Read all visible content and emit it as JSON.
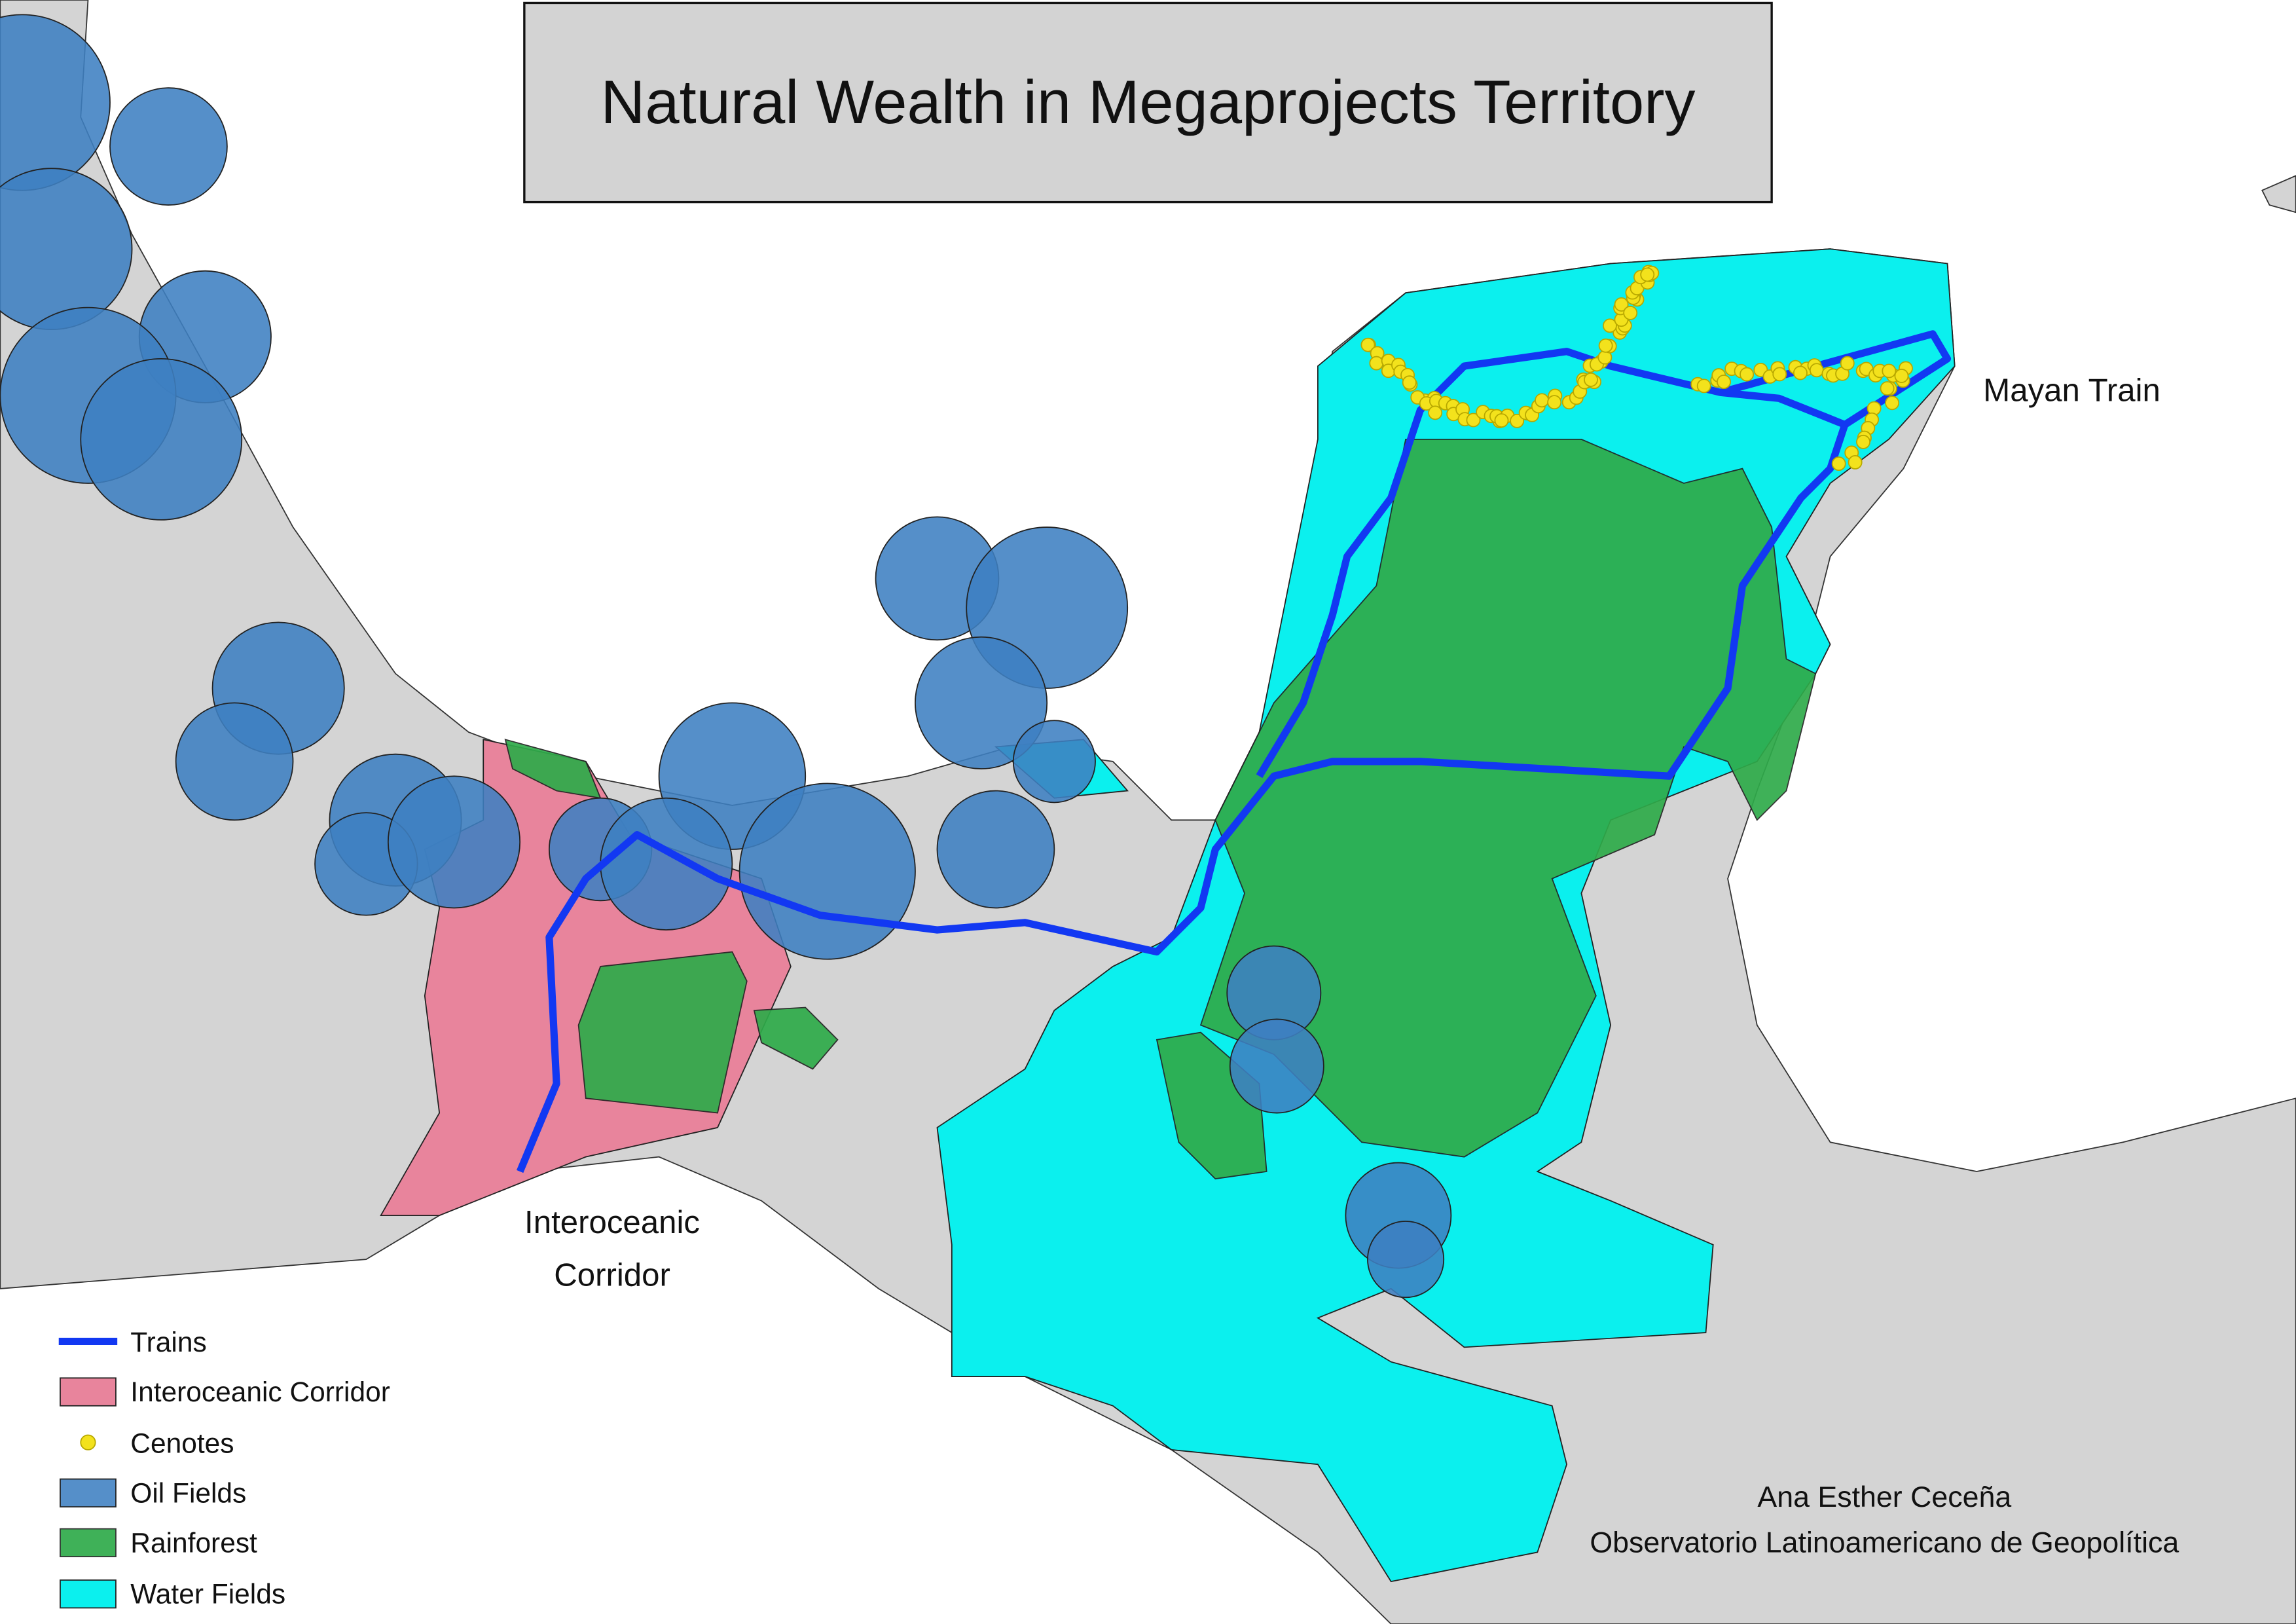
{
  "title": "Natural Wealth in Megaprojects Territory",
  "map_labels": {
    "mayan_train": "Mayan Train",
    "interoceanic_corridor": [
      "Interoceanic",
      "Corridor"
    ]
  },
  "legend": [
    {
      "label": "Trains"
    },
    {
      "label": "Interoceanic Corridor"
    },
    {
      "label": "Cenotes"
    },
    {
      "label": "Oil Fields"
    },
    {
      "label": "Rainforest"
    },
    {
      "label": "Water Fields"
    }
  ],
  "credit": [
    "Ana Esther Ceceña",
    "Observatorio Latinoamericano de Geopolítica"
  ]
}
